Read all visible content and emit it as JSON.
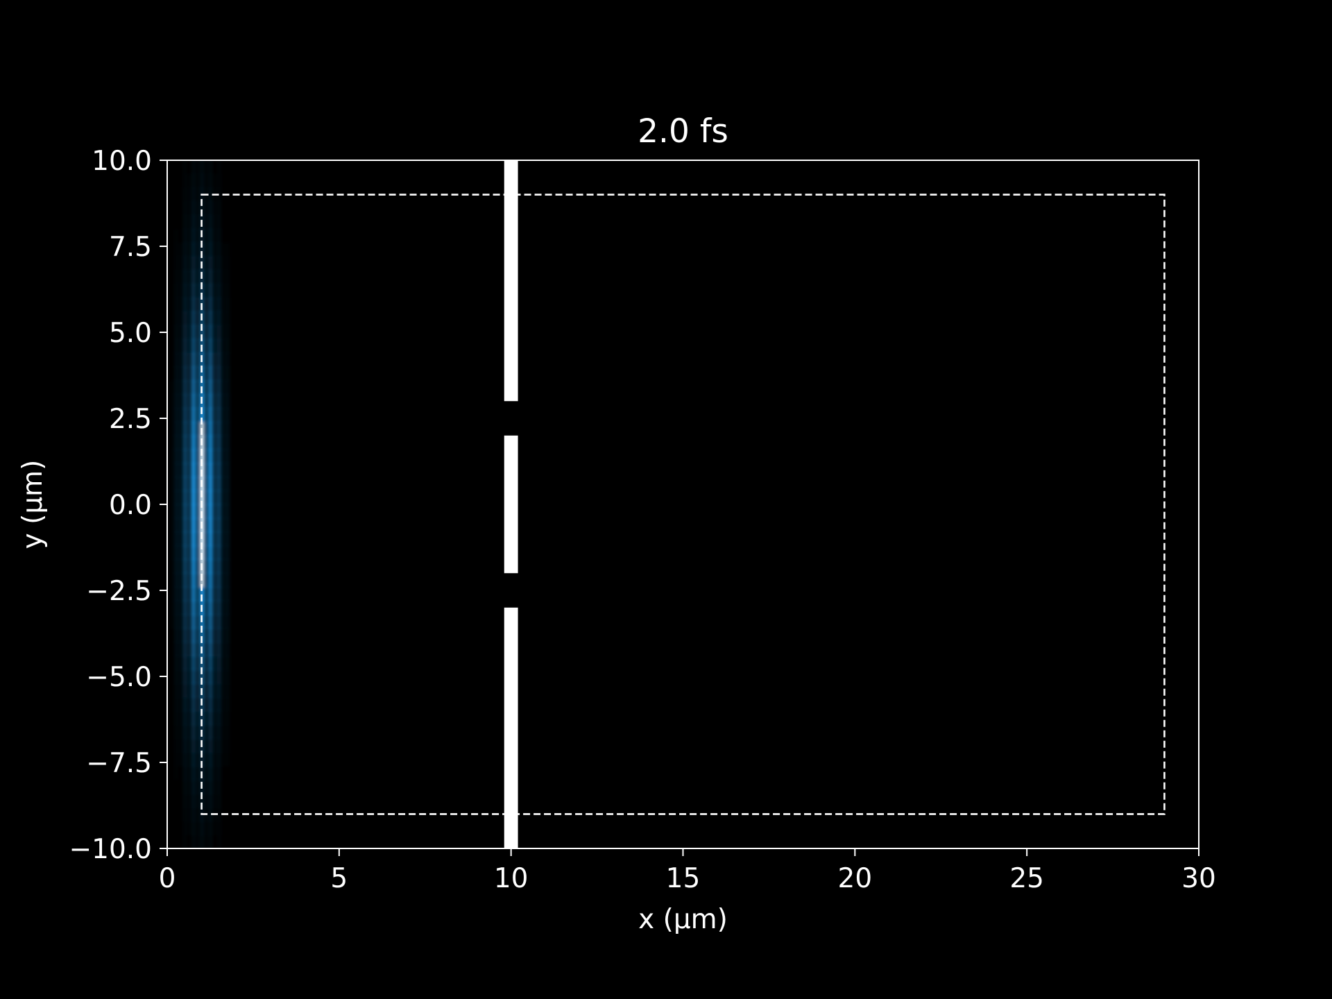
{
  "chart_data": {
    "type": "heatmap",
    "title": "2.0 fs",
    "xlabel": "x (µm)",
    "ylabel": "y (µm)",
    "xlim": [
      0,
      30
    ],
    "ylim": [
      -10,
      10
    ],
    "x_ticks": [
      0,
      5,
      10,
      15,
      20,
      25,
      30
    ],
    "x_tick_labels": [
      "0",
      "5",
      "10",
      "15",
      "20",
      "25",
      "30"
    ],
    "y_ticks": [
      10,
      7.5,
      5,
      2.5,
      0,
      -2.5,
      -5,
      -7.5,
      -10
    ],
    "y_tick_labels": [
      "10.0",
      "7.5",
      "5.0",
      "2.5",
      "0.0",
      "−2.5",
      "−5.0",
      "−7.5",
      "−10.0"
    ],
    "grid": false,
    "colors": {
      "background": "#000000",
      "foreground": "#ffffff",
      "field": "#1ea8ff",
      "field_core": "#dff4ff"
    },
    "wave_packet": {
      "center_x": 1.0,
      "center_y": 0.0,
      "sigma_x": 0.35,
      "sigma_y": 4.0,
      "fringe_period": 0.25
    },
    "wall": {
      "x_min": 9.8,
      "x_max": 10.2,
      "segments": [
        {
          "y_min": 3.0,
          "y_max": 10.0
        },
        {
          "y_min": -2.0,
          "y_max": 2.0
        },
        {
          "y_min": -10.0,
          "y_max": -3.0
        }
      ]
    },
    "dashed_region": {
      "x_min": 1.0,
      "x_max": 29.0,
      "y_min": -9.0,
      "y_max": 9.0
    }
  }
}
